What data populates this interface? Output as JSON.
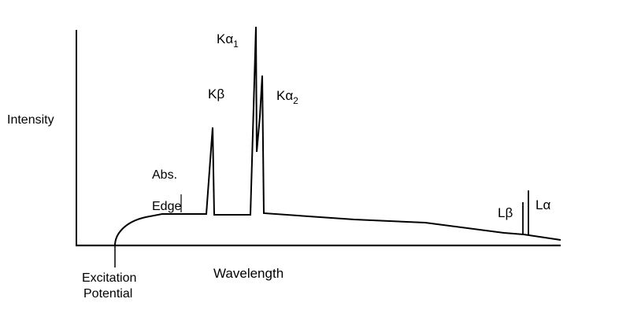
{
  "axes": {
    "y_label": "Intensity",
    "x_label": "Wavelength"
  },
  "annotations": {
    "excitation_line1": "Excitation",
    "excitation_line2": "Potential",
    "abs_edge_line1": "Abs.",
    "abs_edge_line2": "Edge"
  },
  "peaks": {
    "k_beta": {
      "base": "K",
      "greek": "β",
      "sub": ""
    },
    "k_alpha1": {
      "base": "K",
      "greek": "α",
      "sub": "1"
    },
    "k_alpha2": {
      "base": "K",
      "greek": "α",
      "sub": "2"
    },
    "l_beta": {
      "base": "L",
      "greek": "β",
      "sub": ""
    },
    "l_alpha": {
      "base": "L",
      "greek": "α",
      "sub": ""
    }
  },
  "colors": {
    "ink": "#000000",
    "background": "#ffffff"
  }
}
